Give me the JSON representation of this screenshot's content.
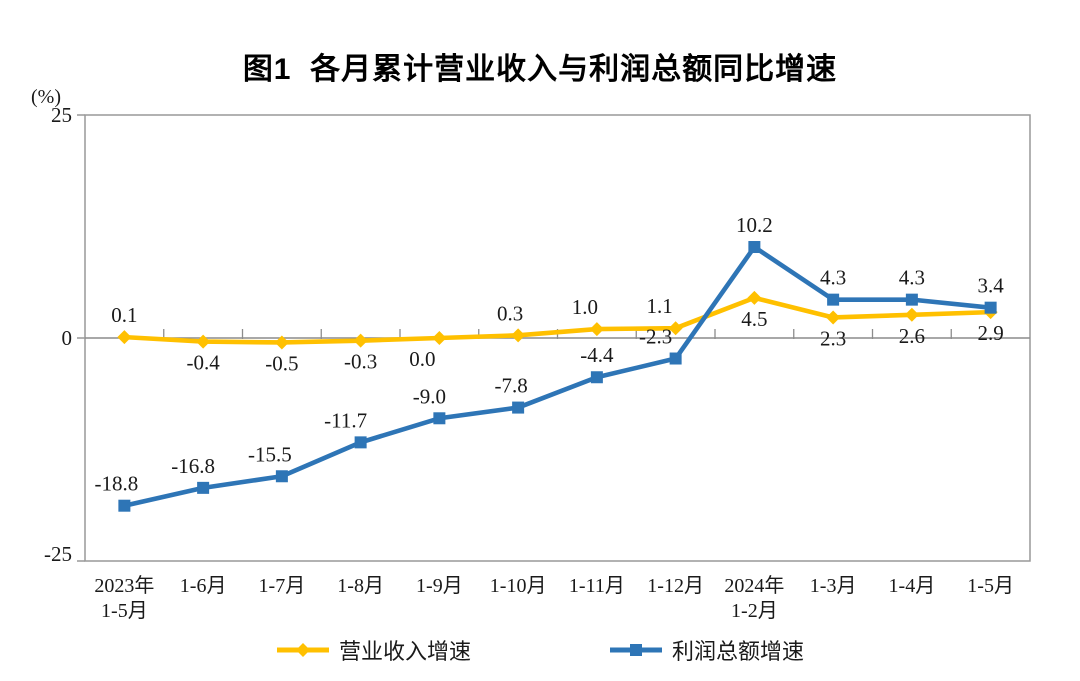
{
  "title": "图1  各月累计营业收入与利润总额同比增速",
  "chart_data": {
    "type": "line",
    "title": "图1  各月累计营业收入与利润总额同比增速",
    "unit_label": "(%)",
    "categories": [
      "2023年\n1-5月",
      "1-6月",
      "1-7月",
      "1-8月",
      "1-9月",
      "1-10月",
      "1-11月",
      "1-12月",
      "2024年\n1-2月",
      "1-3月",
      "1-4月",
      "1-5月"
    ],
    "series": [
      {
        "name": "营业收入增速",
        "color": "#FFC000",
        "marker": "diamond",
        "values": [
          0.1,
          -0.4,
          -0.5,
          -0.3,
          0.0,
          0.3,
          1.0,
          1.1,
          4.5,
          2.3,
          2.6,
          2.9
        ],
        "labels": [
          "0.1",
          "-0.4",
          "-0.5",
          "-0.3",
          "0.0",
          "0.3",
          "1.0",
          "1.1",
          "4.5",
          "2.3",
          "2.6",
          "2.9"
        ],
        "label_side": [
          "above",
          "below",
          "below",
          "below",
          "below",
          "above",
          "above",
          "above",
          "below",
          "below",
          "below",
          "below"
        ]
      },
      {
        "name": "利润总额增速",
        "color": "#2E75B6",
        "marker": "square",
        "values": [
          -18.8,
          -16.8,
          -15.5,
          -11.7,
          -9.0,
          -7.8,
          -4.4,
          -2.3,
          10.2,
          4.3,
          4.3,
          3.4
        ],
        "labels": [
          "-18.8",
          "-16.8",
          "-15.5",
          "-11.7",
          "-9.0",
          "-7.8",
          "-4.4",
          "-2.3",
          "10.2",
          "4.3",
          "4.3",
          "3.4"
        ],
        "label_side": [
          "above",
          "above",
          "above",
          "above",
          "above",
          "above",
          "above",
          "above",
          "above",
          "above",
          "above",
          "above"
        ]
      }
    ],
    "ylim": [
      -25,
      25
    ],
    "yticks": [
      25,
      0,
      -25
    ],
    "grid": false,
    "legend_position": "bottom",
    "axis_color": "#999999",
    "zero_line_color": "#8c8c8c",
    "text_color": "#1a1a1a"
  },
  "legend": {
    "items": [
      {
        "label": "营业收入增速"
      },
      {
        "label": "利润总额增速"
      }
    ]
  }
}
